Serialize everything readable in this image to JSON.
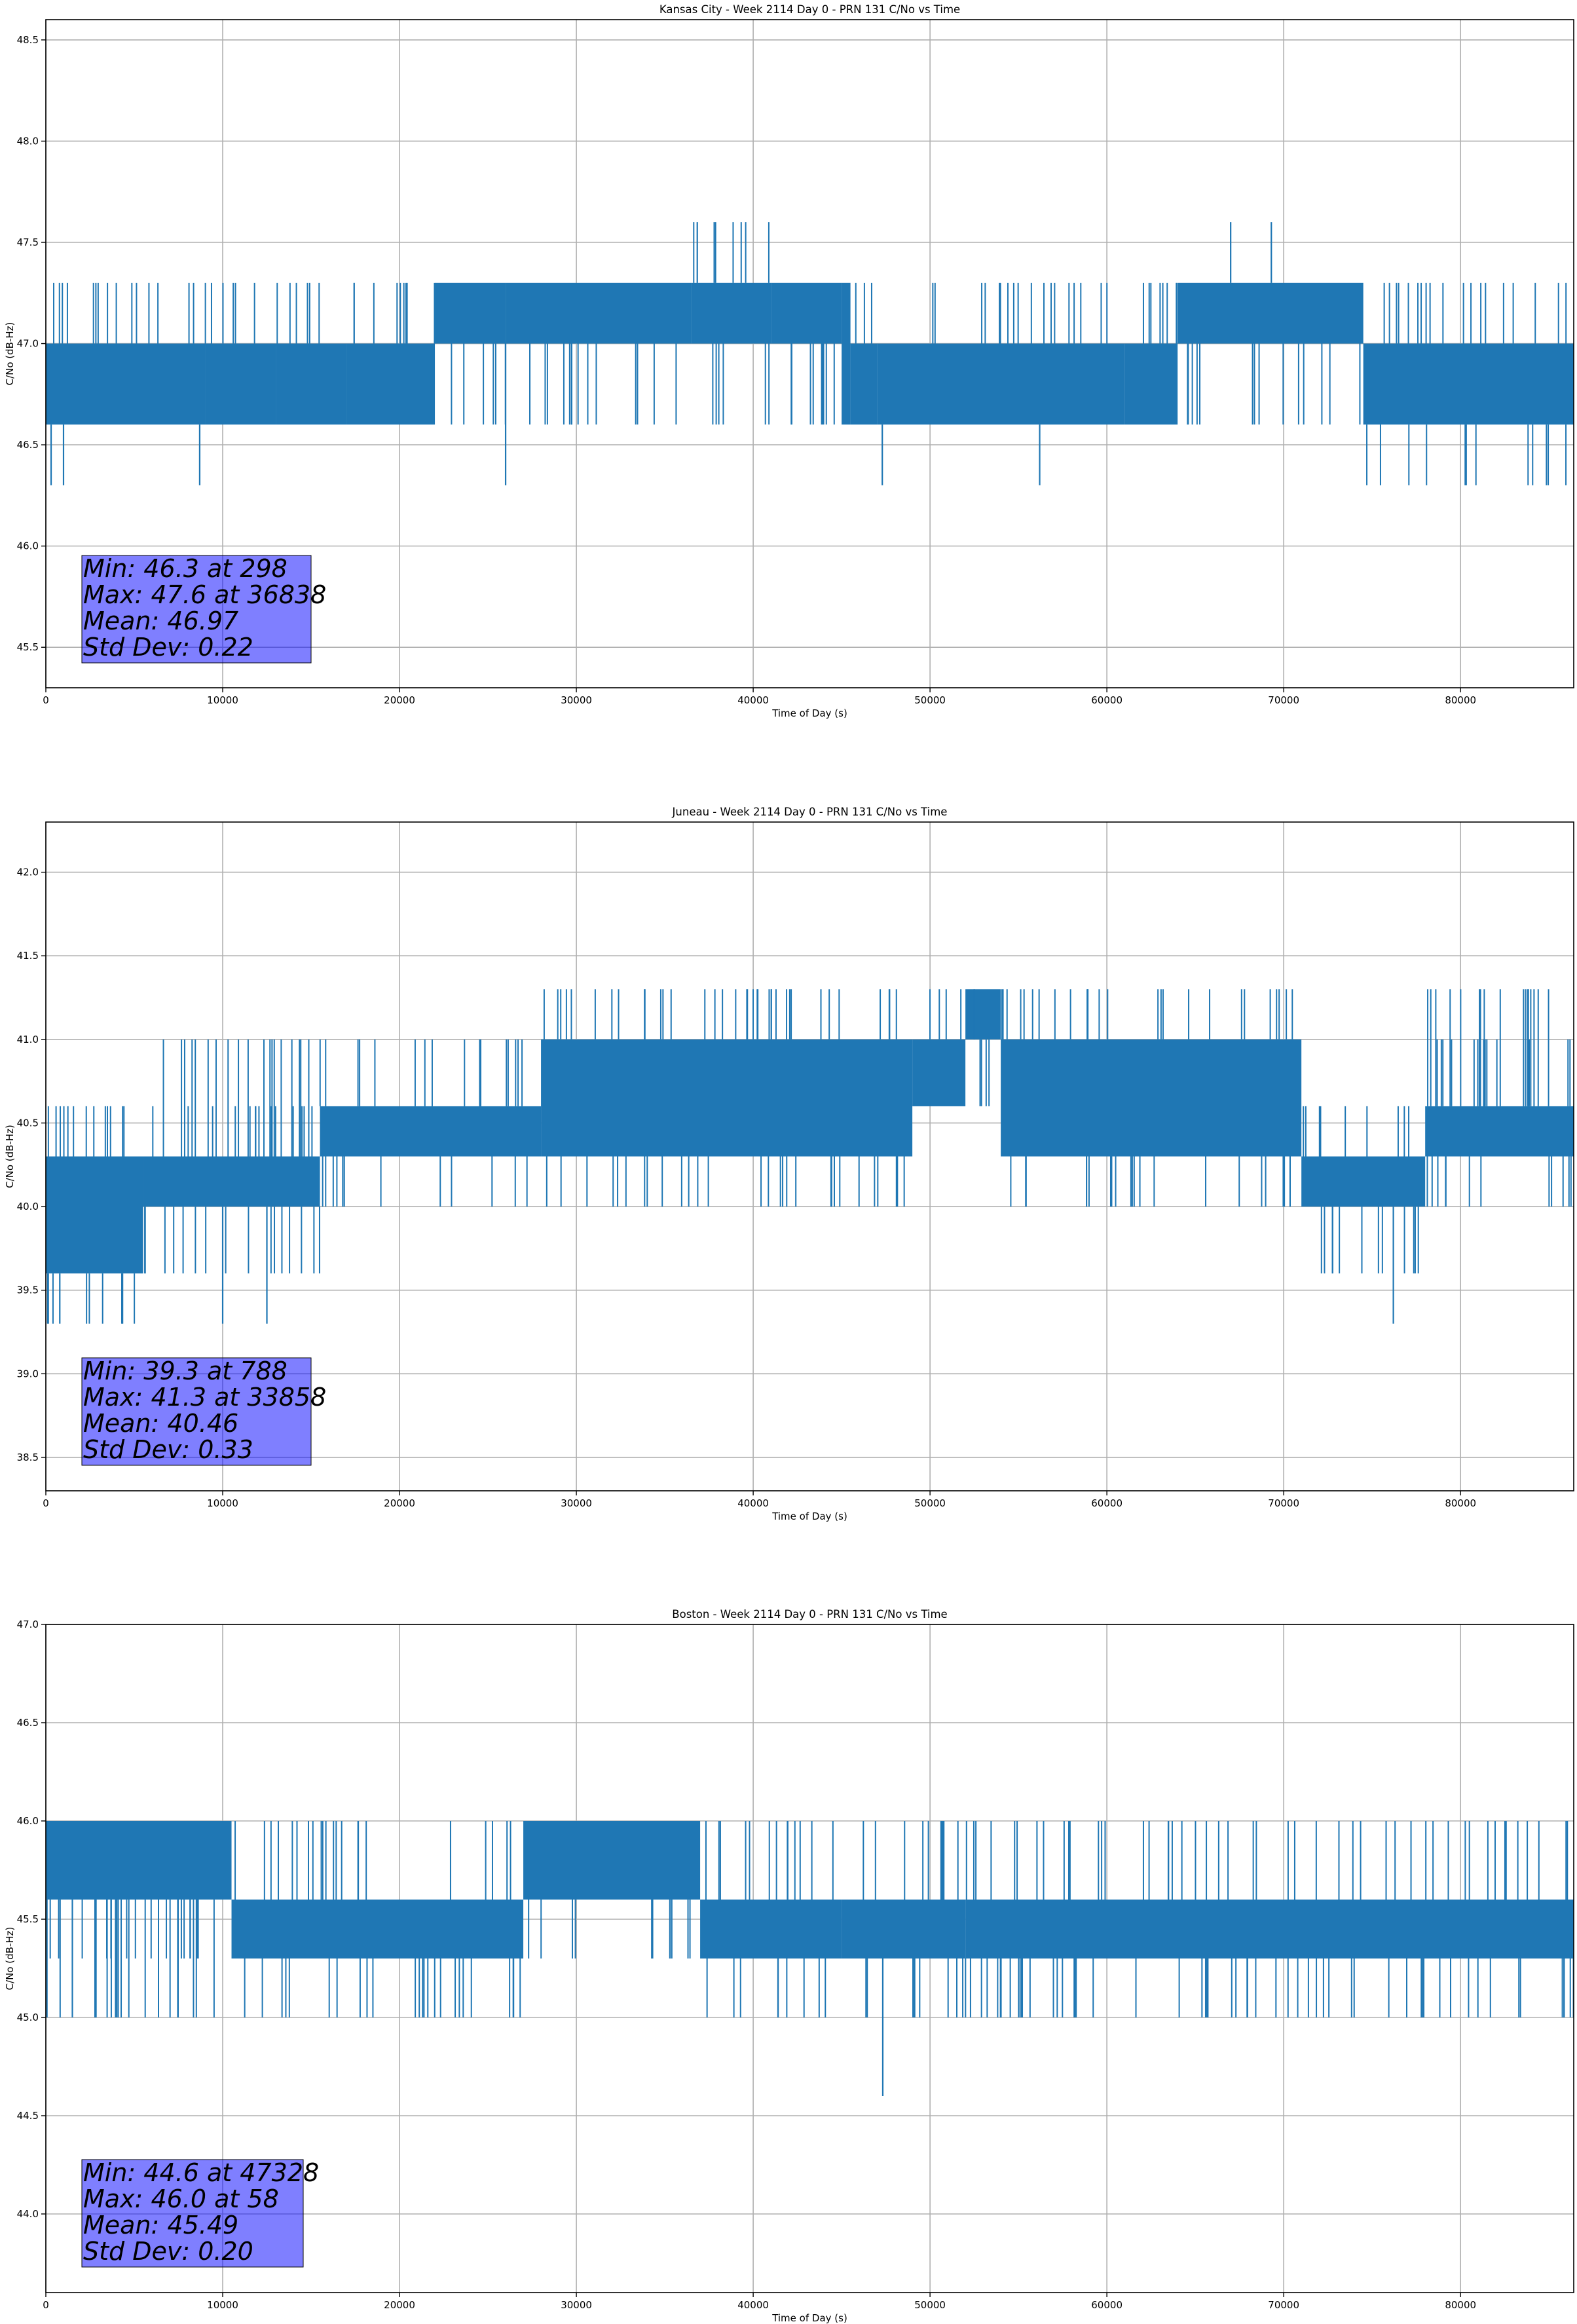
{
  "chart_data": [
    {
      "type": "line",
      "title": "Kansas City - Week 2114 Day 0 - PRN 131 C/No vs Time",
      "xlabel": "Time of Day (s)",
      "ylabel": "C/No (dB-Hz)",
      "xlim": [
        0,
        86400
      ],
      "ylim": [
        45.3,
        48.6
      ],
      "xticks": [
        0,
        10000,
        20000,
        30000,
        40000,
        50000,
        60000,
        70000,
        80000
      ],
      "yticks": [
        45.5,
        46.0,
        46.5,
        47.0,
        47.5,
        48.0,
        48.5
      ],
      "grid": true,
      "color": "#1f77b4",
      "series": [
        {
          "name": "",
          "segments": [
            {
              "x": [
                0,
                4000
              ],
              "levels": [
                46.6,
                47.0
              ],
              "sparse": [
                47.3
              ]
            },
            {
              "x": [
                4000,
                9000
              ],
              "levels": [
                46.6,
                47.0
              ],
              "sparse": [
                47.3
              ]
            },
            {
              "x": [
                9000,
                13000
              ],
              "levels": [
                46.6,
                47.0
              ],
              "sparse": [
                47.3
              ]
            },
            {
              "x": [
                13000,
                17000
              ],
              "levels": [
                46.6,
                47.0
              ],
              "sparse": [
                47.3
              ]
            },
            {
              "x": [
                17000,
                22000
              ],
              "levels": [
                46.6,
                47.0
              ],
              "sparse": [
                47.3
              ]
            },
            {
              "x": [
                22000,
                26000
              ],
              "levels": [
                47.0,
                47.3
              ],
              "sparse": [
                46.6
              ]
            },
            {
              "x": [
                26000,
                36500
              ],
              "levels": [
                47.0,
                47.3
              ],
              "sparse": [
                46.6
              ]
            },
            {
              "x": [
                36500,
                41000
              ],
              "levels": [
                47.0,
                47.3
              ],
              "sparse": [
                47.6,
                46.6
              ]
            },
            {
              "x": [
                41000,
                45000
              ],
              "levels": [
                47.0,
                47.3
              ],
              "sparse": [
                46.6
              ]
            },
            {
              "x": [
                45000,
                45500
              ],
              "levels": [
                46.6,
                47.3
              ],
              "sparse": []
            },
            {
              "x": [
                45500,
                47000
              ],
              "levels": [
                46.6,
                47.0
              ],
              "sparse": [
                47.3
              ]
            },
            {
              "x": [
                47000,
                61000
              ],
              "levels": [
                46.6,
                47.0
              ],
              "sparse": [
                47.3
              ]
            },
            {
              "x": [
                61000,
                64000
              ],
              "levels": [
                46.6,
                47.0
              ],
              "sparse": [
                47.3
              ]
            },
            {
              "x": [
                64000,
                74500
              ],
              "levels": [
                47.0,
                47.3
              ],
              "sparse": [
                46.6
              ]
            },
            {
              "x": [
                74500,
                86400
              ],
              "levels": [
                46.6,
                47.0
              ],
              "sparse": [
                46.3,
                47.3
              ]
            }
          ],
          "spikes": [
            [
              298,
              46.3
            ],
            [
              1000,
              46.3
            ],
            [
              8700,
              46.3
            ],
            [
              26000,
              46.3
            ],
            [
              47300,
              46.3
            ],
            [
              56200,
              46.3
            ],
            [
              36838,
              47.6
            ],
            [
              67000,
              47.6
            ],
            [
              69300,
              47.6
            ]
          ]
        }
      ],
      "stats": {
        "line1": "Min: 46.3 at 298",
        "line2": "Max: 47.6 at 36838",
        "line3": "Mean: 46.97",
        "line4": "Std Dev: 0.22"
      }
    },
    {
      "type": "line",
      "title": "Juneau - Week 2114 Day 0 - PRN 131 C/No vs Time",
      "xlabel": "Time of Day (s)",
      "ylabel": "C/No (dB-Hz)",
      "xlim": [
        0,
        86400
      ],
      "ylim": [
        38.3,
        42.3
      ],
      "xticks": [
        0,
        10000,
        20000,
        30000,
        40000,
        50000,
        60000,
        70000,
        80000
      ],
      "yticks": [
        38.5,
        39.0,
        39.5,
        40.0,
        40.5,
        41.0,
        41.5,
        42.0
      ],
      "grid": true,
      "color": "#1f77b4",
      "series": [
        {
          "name": "",
          "segments": [
            {
              "x": [
                0,
                5500
              ],
              "levels": [
                39.6,
                40.0,
                40.3
              ],
              "sparse": [
                39.3,
                40.6
              ]
            },
            {
              "x": [
                5500,
                15500
              ],
              "levels": [
                40.0,
                40.3
              ],
              "sparse": [
                39.6,
                40.6,
                41.0
              ]
            },
            {
              "x": [
                15500,
                28000
              ],
              "levels": [
                40.3,
                40.6
              ],
              "sparse": [
                40.0,
                41.0
              ]
            },
            {
              "x": [
                28000,
                49000
              ],
              "levels": [
                40.3,
                40.6,
                41.0
              ],
              "sparse": [
                40.0,
                41.3
              ]
            },
            {
              "x": [
                49000,
                52000
              ],
              "levels": [
                40.6,
                41.0
              ],
              "sparse": [
                41.3
              ]
            },
            {
              "x": [
                52000,
                54000
              ],
              "levels": [
                41.0,
                41.3
              ],
              "sparse": [
                40.6
              ]
            },
            {
              "x": [
                54000,
                71000
              ],
              "levels": [
                40.3,
                40.6,
                41.0
              ],
              "sparse": [
                40.0,
                41.3
              ]
            },
            {
              "x": [
                71000,
                78000
              ],
              "levels": [
                40.0,
                40.3
              ],
              "sparse": [
                39.6,
                40.6
              ]
            },
            {
              "x": [
                78000,
                86400
              ],
              "levels": [
                40.3,
                40.6
              ],
              "sparse": [
                40.0,
                41.0,
                41.3
              ]
            }
          ],
          "spikes": [
            [
              788,
              39.3
            ],
            [
              4300,
              39.3
            ],
            [
              10000,
              39.3
            ],
            [
              12500,
              39.3
            ],
            [
              76200,
              39.3
            ],
            [
              33858,
              41.3
            ],
            [
              52500,
              41.3
            ]
          ]
        }
      ],
      "stats": {
        "line1": "Min: 39.3 at 788",
        "line2": "Max: 41.3 at 33858",
        "line3": "Mean: 40.46",
        "line4": "Std Dev: 0.33"
      }
    },
    {
      "type": "line",
      "title": "Boston - Week 2114 Day 0 - PRN 131 C/No vs Time",
      "xlabel": "Time of Day (s)",
      "ylabel": "C/No (dB-Hz)",
      "xlim": [
        0,
        86400
      ],
      "ylim": [
        43.6,
        47.0
      ],
      "xticks": [
        0,
        10000,
        20000,
        30000,
        40000,
        50000,
        60000,
        70000,
        80000
      ],
      "yticks": [
        44.0,
        44.5,
        45.0,
        45.5,
        46.0,
        46.5,
        47.0
      ],
      "grid": true,
      "color": "#1f77b4",
      "series": [
        {
          "name": "",
          "segments": [
            {
              "x": [
                0,
                10500
              ],
              "levels": [
                45.6,
                46.0
              ],
              "sparse": [
                45.3,
                45.0
              ]
            },
            {
              "x": [
                10500,
                27000
              ],
              "levels": [
                45.3,
                45.6
              ],
              "sparse": [
                46.0,
                45.0
              ]
            },
            {
              "x": [
                27000,
                37000
              ],
              "levels": [
                45.6,
                46.0
              ],
              "sparse": [
                45.3
              ]
            },
            {
              "x": [
                37000,
                45000
              ],
              "levels": [
                45.3,
                45.6
              ],
              "sparse": [
                46.0,
                45.0
              ]
            },
            {
              "x": [
                45000,
                52000
              ],
              "levels": [
                45.3,
                45.6
              ],
              "sparse": [
                45.0,
                46.0
              ]
            },
            {
              "x": [
                52000,
                86400
              ],
              "levels": [
                45.3,
                45.6
              ],
              "sparse": [
                46.0,
                45.0
              ]
            }
          ],
          "spikes": [
            [
              47328,
              44.6
            ],
            [
              58,
              46.0
            ],
            [
              1500,
              45.0
            ]
          ]
        }
      ],
      "stats": {
        "line1": "Min: 44.6 at 47328",
        "line2": "Max: 46.0 at 58",
        "line3": "Mean: 45.49",
        "line4": "Std Dev: 0.20"
      }
    }
  ]
}
